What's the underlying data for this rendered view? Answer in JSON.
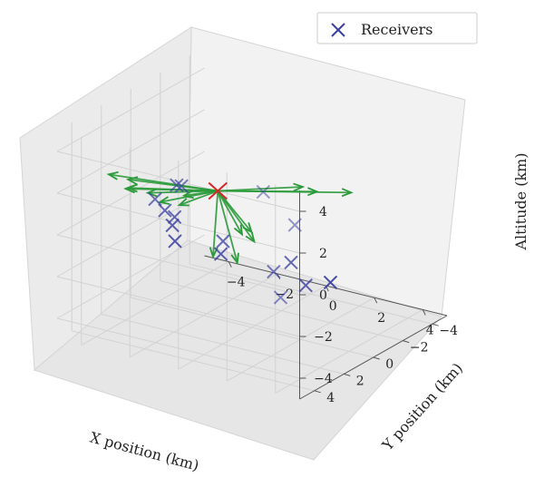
{
  "chart_data": {
    "type": "scatter",
    "projection": "3d",
    "xlabel": "X position (km)",
    "ylabel": "Y position (km)",
    "zlabel": "Altitude (km)",
    "xticks": [
      "−4",
      "−2",
      "0",
      "2",
      "4"
    ],
    "yticks": [
      "−4",
      "−2",
      "0",
      "2",
      "4"
    ],
    "zticks": [
      "−4",
      "−2",
      "0",
      "2",
      "4"
    ],
    "xlim": [
      -5,
      5
    ],
    "ylim": [
      -5,
      5
    ],
    "zlim": [
      -5,
      5
    ],
    "grid": true,
    "legend": {
      "placement": "top-right",
      "entries": [
        "Receivers"
      ]
    },
    "colors": {
      "receivers": "#3a3fa0",
      "source": "#d62728",
      "arrows": "#2a9a3a"
    },
    "receivers": [
      {
        "x": 3.5,
        "y": 5.0,
        "z": 4.5
      },
      {
        "x": 4.5,
        "y": 4.5,
        "z": 3.0
      },
      {
        "x": -2.0,
        "y": 1.5,
        "z": 1.8
      },
      {
        "x": -2.5,
        "y": 1.0,
        "z": 1.5
      },
      {
        "x": -4.0,
        "y": 0.0,
        "z": 0.0
      },
      {
        "x": -4.2,
        "y": -1.0,
        "z": -1.0
      },
      {
        "x": -3.8,
        "y": -1.0,
        "z": -1.2
      },
      {
        "x": -4.5,
        "y": -2.0,
        "z": -2.2
      },
      {
        "x": -5.0,
        "y": -3.0,
        "z": -3.5
      },
      {
        "x": -2.5,
        "y": -2.0,
        "z": -3.0
      },
      {
        "x": -1.5,
        "y": -0.5,
        "z": -1.5
      },
      {
        "x": 1.5,
        "y": 1.0,
        "z": -1.5
      },
      {
        "x": 3.0,
        "y": 3.0,
        "z": -1.5
      },
      {
        "x": 1.0,
        "y": -1.0,
        "z": -2.0
      },
      {
        "x": 1.0,
        "y": -2.0,
        "z": -3.5
      },
      {
        "x": 0.5,
        "y": -4.5,
        "z": -4.5
      }
    ],
    "source": {
      "x": -0.5,
      "y": 1.5,
      "z": 2.0
    },
    "arrows": [
      {
        "dx": 5.0,
        "dy": 1.5,
        "dz": 2.0
      },
      {
        "dx": 5.5,
        "dy": 0.0,
        "dz": 1.5
      },
      {
        "dx": 3.5,
        "dy": 0.0,
        "dz": 1.2
      },
      {
        "dx": -4.5,
        "dy": 0.0,
        "dz": -0.5
      },
      {
        "dx": -4.0,
        "dy": -0.5,
        "dz": -0.8
      },
      {
        "dx": -4.0,
        "dy": -0.5,
        "dz": -1.2
      },
      {
        "dx": -3.5,
        "dy": -1.0,
        "dz": -1.5
      },
      {
        "dx": -3.0,
        "dy": -1.0,
        "dz": -1.8
      },
      {
        "dx": -2.5,
        "dy": -1.5,
        "dz": -2.0
      },
      {
        "dx": -3.5,
        "dy": 0.5,
        "dz": -0.7
      },
      {
        "dx": -2.0,
        "dy": -1.0,
        "dz": -1.2
      },
      {
        "dx": -0.5,
        "dy": -0.5,
        "dz": -3.5
      },
      {
        "dx": 0.5,
        "dy": -0.5,
        "dz": -3.5
      },
      {
        "dx": 1.5,
        "dy": 0.0,
        "dz": -2.0
      },
      {
        "dx": 1.0,
        "dy": 0.0,
        "dz": -1.8
      },
      {
        "dx": 2.0,
        "dy": 1.0,
        "dz": -1.0
      }
    ]
  }
}
